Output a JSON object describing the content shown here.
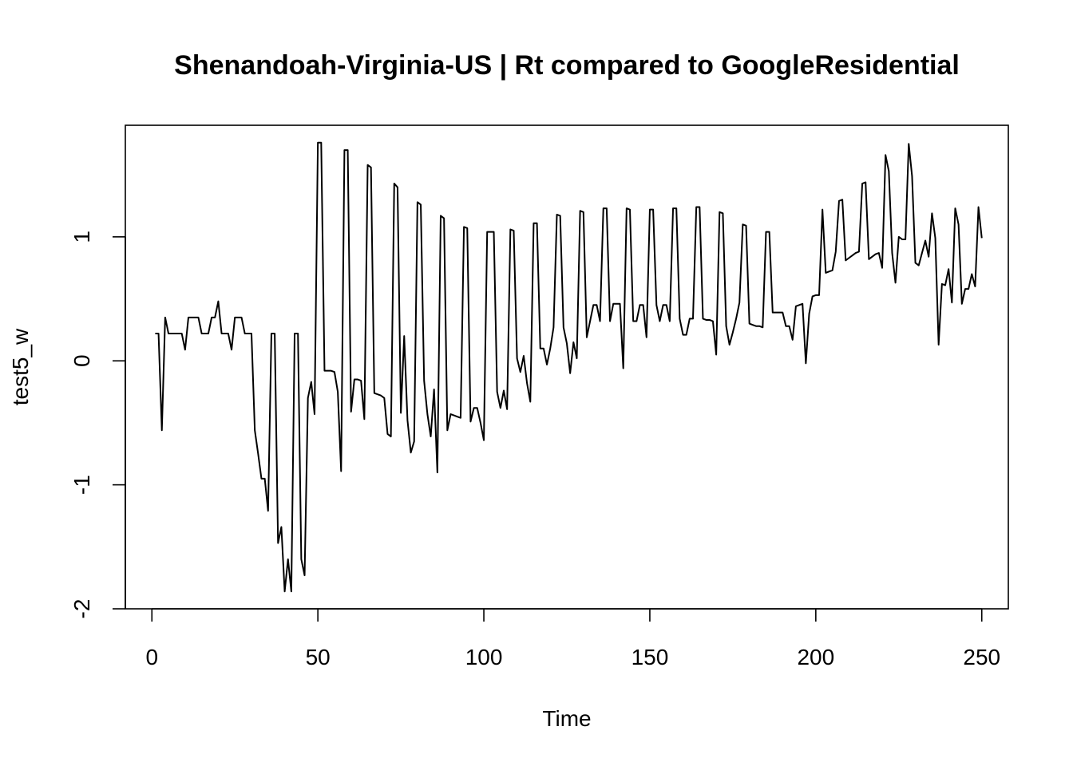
{
  "chart_data": {
    "type": "line",
    "title": "Shenandoah-Virginia-US | Rt compared to GoogleResidential",
    "xlabel": "Time",
    "ylabel": "test5_w",
    "xlim": [
      -8,
      258
    ],
    "ylim": [
      -2,
      1.9
    ],
    "x_ticks": [
      0,
      50,
      100,
      150,
      200,
      250
    ],
    "y_ticks": [
      -2,
      -1,
      0,
      1
    ],
    "grid": false,
    "legend": "none",
    "line_color": "#000000",
    "series": [
      {
        "x_start": 1,
        "values": [
          0.22,
          0.22,
          -0.56,
          0.35,
          0.22,
          0.22,
          0.22,
          0.22,
          0.22,
          0.09,
          0.35,
          0.35,
          0.35,
          0.35,
          0.22,
          0.22,
          0.22,
          0.35,
          0.35,
          0.48,
          0.22,
          0.22,
          0.22,
          0.09,
          0.35,
          0.35,
          0.35,
          0.22,
          0.22,
          0.22,
          -0.56,
          -0.75,
          -0.95,
          -0.95,
          -1.21,
          0.22,
          0.22,
          -1.47,
          -1.34,
          -1.86,
          -1.6,
          -1.86,
          0.22,
          0.22,
          -1.6,
          -1.73,
          -0.3,
          -0.17,
          -0.43,
          1.76,
          1.76,
          -0.08,
          -0.08,
          -0.08,
          -0.09,
          -0.25,
          -0.89,
          1.7,
          1.7,
          -0.41,
          -0.15,
          -0.15,
          -0.16,
          -0.47,
          1.58,
          1.56,
          -0.26,
          -0.27,
          -0.28,
          -0.3,
          -0.59,
          -0.61,
          1.43,
          1.4,
          -0.42,
          0.2,
          -0.48,
          -0.74,
          -0.65,
          1.28,
          1.26,
          -0.16,
          -0.43,
          -0.61,
          -0.23,
          -0.9,
          1.17,
          1.15,
          -0.56,
          -0.43,
          -0.44,
          -0.45,
          -0.46,
          1.08,
          1.07,
          -0.49,
          -0.38,
          -0.38,
          -0.5,
          -0.64,
          1.04,
          1.04,
          1.04,
          -0.25,
          -0.38,
          -0.24,
          -0.39,
          1.06,
          1.05,
          0.02,
          -0.09,
          0.04,
          -0.18,
          -0.33,
          1.11,
          1.11,
          0.1,
          0.1,
          -0.03,
          0.1,
          0.27,
          1.18,
          1.17,
          0.27,
          0.14,
          -0.1,
          0.15,
          0.02,
          1.21,
          1.2,
          0.19,
          0.32,
          0.45,
          0.45,
          0.32,
          1.23,
          1.23,
          0.32,
          0.46,
          0.46,
          0.46,
          -0.06,
          1.23,
          1.22,
          0.32,
          0.32,
          0.45,
          0.45,
          0.19,
          1.22,
          1.22,
          0.45,
          0.32,
          0.45,
          0.45,
          0.32,
          1.23,
          1.23,
          0.34,
          0.21,
          0.21,
          0.34,
          0.34,
          1.24,
          1.24,
          0.34,
          0.33,
          0.33,
          0.32,
          0.05,
          1.2,
          1.19,
          0.28,
          0.13,
          0.23,
          0.34,
          0.47,
          1.1,
          1.09,
          0.3,
          0.29,
          0.28,
          0.28,
          0.27,
          1.04,
          1.04,
          0.39,
          0.39,
          0.39,
          0.39,
          0.28,
          0.28,
          0.17,
          0.44,
          0.45,
          0.46,
          -0.02,
          0.38,
          0.52,
          0.53,
          0.53,
          1.22,
          0.71,
          0.72,
          0.73,
          0.88,
          1.29,
          1.3,
          0.81,
          0.83,
          0.85,
          0.87,
          0.88,
          1.43,
          1.44,
          0.82,
          0.84,
          0.86,
          0.87,
          0.75,
          1.66,
          1.53,
          0.87,
          0.63,
          1.0,
          0.98,
          0.98,
          1.75,
          1.49,
          0.79,
          0.77,
          0.87,
          0.97,
          0.84,
          1.19,
          0.99,
          0.13,
          0.62,
          0.61,
          0.74,
          0.47,
          1.23,
          1.1,
          0.46,
          0.58,
          0.58,
          0.7,
          0.6,
          1.24,
          0.99
        ]
      }
    ]
  }
}
